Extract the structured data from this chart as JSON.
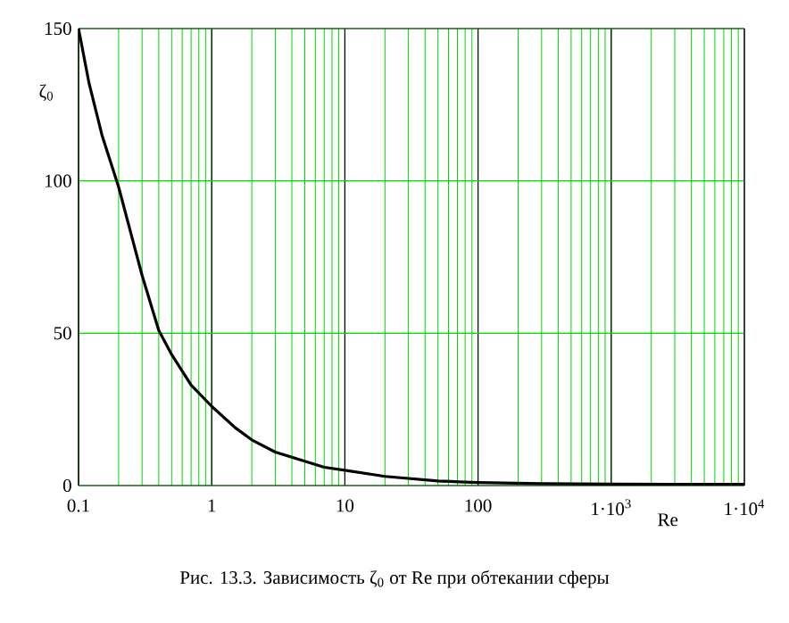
{
  "chart_data": {
    "type": "line",
    "xlabel": "Re",
    "ylabel": "ζ$_{0}$",
    "annotations": [
      "Рис. 13.3. Зависимость ζ$_{0}$ от Re при обтекании сферы"
    ],
    "log": "x",
    "grid": true,
    "marker": "none",
    "line_style": "solid",
    "xlim": [
      0.1,
      10000
    ],
    "ylim": [
      0,
      150
    ],
    "xticks": [
      0.1,
      1,
      10,
      100,
      {
        "value": 1000,
        "label": "1·10$^{3}$"
      },
      {
        "value": 10000,
        "label": "1·10$^{4}$"
      }
    ],
    "yticks": [
      0,
      50,
      100,
      150
    ],
    "series": [
      {
        "color": "#000000",
        "x": [
          0.1,
          0.12,
          0.15,
          0.2,
          0.25,
          0.3,
          0.4,
          0.5,
          0.7,
          1,
          1.5,
          2,
          3,
          5,
          7,
          10,
          20,
          50,
          100,
          300,
          1000,
          3000,
          10000
        ],
        "values": [
          150,
          132,
          115,
          98,
          82,
          69,
          51,
          43,
          33,
          26,
          19,
          15,
          11,
          8,
          6,
          5,
          3,
          1.5,
          1,
          0.6,
          0.5,
          0.4,
          0.4
        ]
      }
    ]
  }
}
